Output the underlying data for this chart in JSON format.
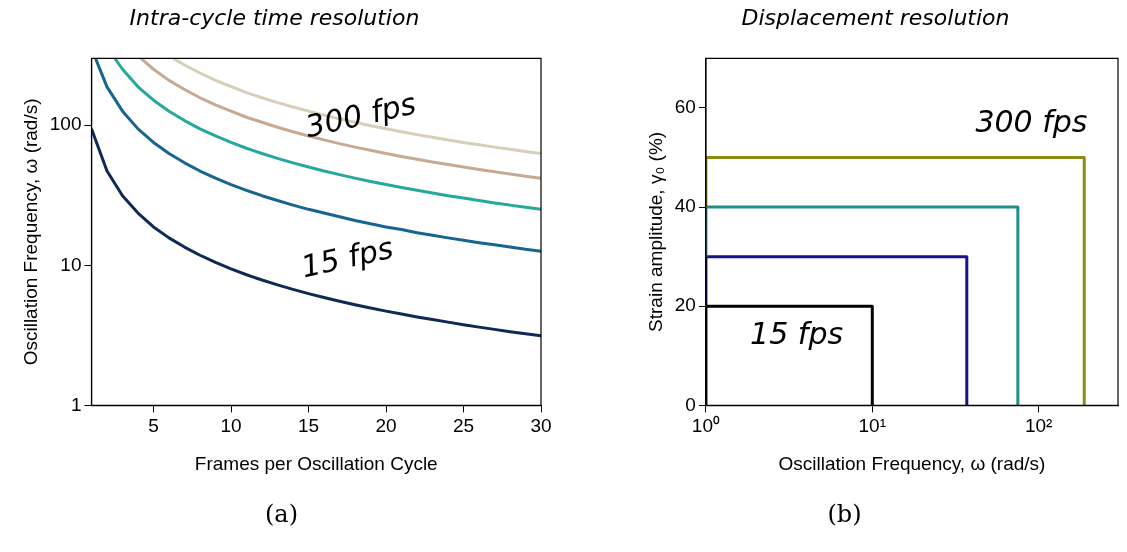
{
  "chart_data": [
    {
      "type": "line",
      "title": "Intra-cycle time resolution",
      "xlabel": "Frames per Oscillation Cycle",
      "ylabel": "Oscillation Frequency, ω (rad/s)",
      "log": "y",
      "grid": false,
      "legend": false,
      "marker": "none",
      "line_style": "solid",
      "xlim": [
        1,
        30
      ],
      "xticks": [
        5,
        10,
        15,
        20,
        25,
        30
      ],
      "ylim": [
        1,
        300
      ],
      "yticks": [
        1,
        10,
        100
      ],
      "series": [
        {
          "color": "#0f2a55",
          "x": [
            1,
            2,
            3,
            4,
            5,
            6,
            7,
            8,
            9,
            10,
            11,
            12,
            13,
            14,
            15,
            16,
            17,
            18,
            19,
            20,
            21,
            22,
            23,
            24,
            25,
            26,
            27,
            28,
            29,
            30
          ],
          "values": [
            94.2,
            47.1,
            31.4,
            23.6,
            18.8,
            15.7,
            13.5,
            11.8,
            10.5,
            9.42,
            8.56,
            7.85,
            7.25,
            6.73,
            6.28,
            5.89,
            5.54,
            5.23,
            4.96,
            4.71,
            4.49,
            4.28,
            4.1,
            3.93,
            3.77,
            3.62,
            3.49,
            3.36,
            3.25,
            3.14
          ]
        },
        {
          "color": "#17668f",
          "x": [
            1.26,
            2,
            3,
            4,
            5,
            6,
            7,
            8,
            9,
            10,
            11,
            12,
            13,
            14,
            15,
            16,
            17,
            18,
            19,
            20,
            21,
            22,
            23,
            24,
            25,
            26,
            27,
            28,
            29,
            30
          ],
          "values": [
            300,
            188,
            126,
            94.2,
            75.4,
            62.8,
            53.9,
            47.1,
            41.9,
            37.7,
            34.3,
            31.4,
            29,
            26.9,
            25.1,
            23.6,
            22.2,
            20.9,
            19.8,
            18.8,
            18,
            17.1,
            16.4,
            15.7,
            15.1,
            14.5,
            14,
            13.5,
            13,
            12.6
          ]
        },
        {
          "color": "#26a99d",
          "x": [
            2.51,
            3,
            4,
            5,
            6,
            7,
            8,
            9,
            10,
            11,
            12,
            13,
            14,
            15,
            16,
            17,
            18,
            19,
            20,
            21,
            22,
            23,
            24,
            25,
            26,
            27,
            28,
            29,
            30
          ],
          "values": [
            300,
            251,
            188,
            151,
            126,
            108,
            94.2,
            83.8,
            75.4,
            68.5,
            62.8,
            58,
            53.9,
            50.3,
            47.1,
            44.4,
            41.9,
            39.7,
            37.7,
            35.9,
            34.3,
            32.8,
            31.4,
            30.2,
            29,
            27.9,
            26.9,
            26,
            25.1
          ]
        },
        {
          "color": "#c8aa94",
          "x": [
            4.19,
            5,
            6,
            7,
            8,
            9,
            10,
            11,
            12,
            13,
            14,
            15,
            16,
            17,
            18,
            19,
            20,
            21,
            22,
            23,
            24,
            25,
            26,
            27,
            28,
            29,
            30
          ],
          "values": [
            300,
            251,
            209,
            180,
            157,
            140,
            126,
            114,
            105,
            96.7,
            89.8,
            83.8,
            78.6,
            73.9,
            69.8,
            66.2,
            62.8,
            59.9,
            57.1,
            54.7,
            52.4,
            50.3,
            48.3,
            46.6,
            44.9,
            43.3,
            41.9
          ]
        },
        {
          "color": "#d6cfb9",
          "x": [
            6.28,
            7,
            8,
            9,
            10,
            11,
            12,
            13,
            14,
            15,
            16,
            17,
            18,
            19,
            20,
            21,
            22,
            23,
            24,
            25,
            26,
            27,
            28,
            29,
            30
          ],
          "values": [
            300,
            269,
            236,
            209,
            189,
            171,
            157,
            145,
            135,
            126,
            118,
            111,
            105,
            99.2,
            94.3,
            89.8,
            85.7,
            82,
            78.5,
            75.4,
            72.5,
            69.8,
            67.3,
            65,
            62.8
          ]
        }
      ],
      "annotations": [
        "300 fps",
        "15 fps",
        "(a)"
      ]
    },
    {
      "type": "line",
      "title": "Displacement resolution",
      "xlabel": "Oscillation Frequency, ω (rad/s)",
      "ylabel": "Strain amplitude, γ₀ (%)",
      "log": "x",
      "grid": false,
      "legend": false,
      "marker": "none",
      "line_style": "solid",
      "xlim": [
        1,
        300
      ],
      "xticks": [
        {
          "value": 1,
          "label": "10⁰"
        },
        {
          "value": 10,
          "label": "10¹"
        },
        {
          "value": 100,
          "label": "10²"
        }
      ],
      "ylim": [
        0,
        70
      ],
      "yticks": [
        0,
        20,
        40,
        60
      ],
      "series": [
        {
          "color": "#8c8c12",
          "x": [
            1,
            1,
            188,
            188
          ],
          "values": [
            40,
            50,
            50,
            0
          ]
        },
        {
          "color": "#1f8f8c",
          "x": [
            1,
            1,
            75,
            75
          ],
          "values": [
            30,
            40,
            40,
            0
          ]
        },
        {
          "color": "#16168a",
          "x": [
            1,
            1,
            37,
            37
          ],
          "values": [
            20,
            30,
            30,
            0
          ]
        },
        {
          "color": "#000000",
          "x": [
            1,
            1,
            10,
            10
          ],
          "values": [
            0,
            20,
            20,
            0
          ]
        }
      ],
      "annotations": [
        "300 fps",
        "15 fps",
        "(b)"
      ]
    }
  ]
}
